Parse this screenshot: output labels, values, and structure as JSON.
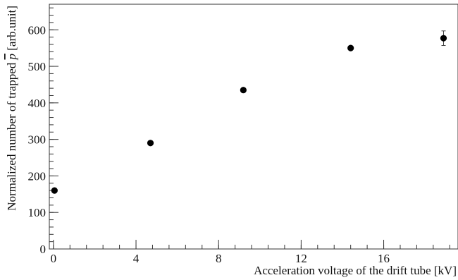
{
  "chart_data": {
    "type": "scatter",
    "xlabel": "Acceleration voltage of the drift tube [kV]",
    "ylabel_prefix": "Normalized number of trapped ",
    "ylabel_symbol": "p",
    "ylabel_suffix": " [arb.unit]",
    "xlim": [
      -0.2,
      19.6
    ],
    "ylim": [
      0,
      670
    ],
    "x_major_ticks": [
      0,
      4,
      8,
      12,
      16
    ],
    "x_tick_labels": [
      "0",
      "4",
      "8",
      "12",
      "16"
    ],
    "y_major_ticks": [
      0,
      100,
      200,
      300,
      400,
      500,
      600
    ],
    "y_tick_labels": [
      "0",
      "100",
      "200",
      "300",
      "400",
      "500",
      "600"
    ],
    "x_minor_step": 0.8,
    "y_minor_step": 20,
    "grid": false,
    "marker_color": "#000000",
    "series": [
      {
        "points": [
          {
            "x": 0.05,
            "y": 160,
            "err": 0
          },
          {
            "x": 4.7,
            "y": 290,
            "err": 0
          },
          {
            "x": 9.2,
            "y": 435,
            "err": 0
          },
          {
            "x": 14.4,
            "y": 550,
            "err": 0
          },
          {
            "x": 18.9,
            "y": 577,
            "err": 20
          }
        ]
      }
    ]
  }
}
